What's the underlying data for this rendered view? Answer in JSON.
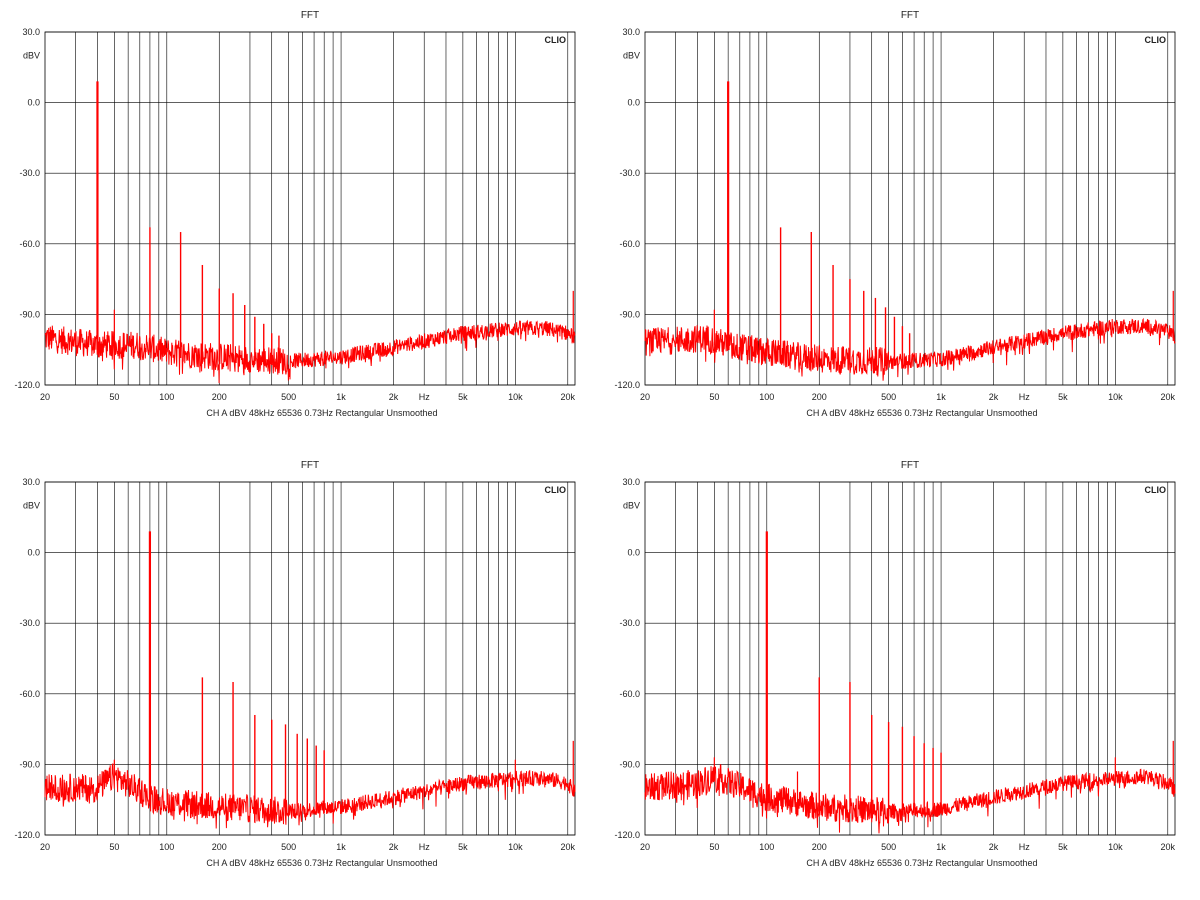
{
  "colors": {
    "trace": "#ff0000",
    "grid": "#000000",
    "text": "#222222",
    "background": "#ffffff"
  },
  "chart_data": [
    {
      "type": "line",
      "title": "FFT",
      "brand": "CLIO",
      "ylabel": "dBV",
      "xlabel": "Hz",
      "footer": "CH A   dBV   48kHz   65536   0.73Hz   Rectangular   Unsmoothed",
      "x_scale": "log",
      "xlim": [
        20,
        22000
      ],
      "ylim": [
        -120,
        30
      ],
      "y_ticks": [
        "30.0",
        "0.0",
        "-30.0",
        "-60.0",
        "-90.0",
        "-120.0"
      ],
      "x_ticks": [
        "20",
        "50",
        "100",
        "200",
        "500",
        "1k",
        "2k",
        "5k",
        "10k",
        "20k"
      ],
      "grid": true,
      "series": [
        {
          "fundamental_hz": 40,
          "fundamental_db": 9,
          "peaks": [
            [
              80,
              -53
            ],
            [
              120,
              -55
            ],
            [
              160,
              -69
            ],
            [
              200,
              -79
            ],
            [
              240,
              -81
            ],
            [
              280,
              -86
            ],
            [
              320,
              -91
            ],
            [
              360,
              -94
            ],
            [
              400,
              -98
            ],
            [
              440,
              -99
            ]
          ],
          "floor": [
            [
              20,
              -100
            ],
            [
              40,
              -103
            ],
            [
              70,
              -103
            ],
            [
              100,
              -106
            ],
            [
              200,
              -108
            ],
            [
              500,
              -110
            ],
            [
              1000,
              -108
            ],
            [
              2000,
              -104
            ],
            [
              5000,
              -98
            ],
            [
              10000,
              -96
            ],
            [
              15000,
              -96
            ],
            [
              20000,
              -98
            ],
            [
              22000,
              -100
            ]
          ],
          "extra_spurs": [
            [
              50,
              -88
            ],
            [
              21500,
              -80
            ]
          ]
        }
      ]
    },
    {
      "type": "line",
      "title": "FFT",
      "brand": "CLIO",
      "ylabel": "dBV",
      "xlabel": "Hz",
      "footer": "CH A   dBV   48kHz   65536   0.73Hz   Rectangular   Unsmoothed",
      "x_scale": "log",
      "xlim": [
        20,
        22000
      ],
      "ylim": [
        -120,
        30
      ],
      "y_ticks": [
        "30.0",
        "0.0",
        "-30.0",
        "-60.0",
        "-90.0",
        "-120.0"
      ],
      "x_ticks": [
        "20",
        "50",
        "100",
        "200",
        "500",
        "1k",
        "2k",
        "5k",
        "10k",
        "20k"
      ],
      "grid": true,
      "series": [
        {
          "fundamental_hz": 60,
          "fundamental_db": 9,
          "peaks": [
            [
              120,
              -53
            ],
            [
              180,
              -55
            ],
            [
              240,
              -69
            ],
            [
              300,
              -75
            ],
            [
              360,
              -80
            ],
            [
              420,
              -83
            ],
            [
              480,
              -87
            ],
            [
              540,
              -91
            ],
            [
              600,
              -95
            ],
            [
              660,
              -98
            ]
          ],
          "floor": [
            [
              20,
              -102
            ],
            [
              45,
              -100
            ],
            [
              60,
              -103
            ],
            [
              100,
              -106
            ],
            [
              200,
              -109
            ],
            [
              500,
              -110
            ],
            [
              1000,
              -109
            ],
            [
              2000,
              -104
            ],
            [
              5000,
              -98
            ],
            [
              10000,
              -95
            ],
            [
              15000,
              -95
            ],
            [
              20000,
              -97
            ],
            [
              22000,
              -100
            ]
          ],
          "extra_spurs": [
            [
              50,
              -88
            ],
            [
              21500,
              -80
            ]
          ]
        }
      ]
    },
    {
      "type": "line",
      "title": "FFT",
      "brand": "CLIO",
      "ylabel": "dBV",
      "xlabel": "Hz",
      "footer": "CH A   dBV   48kHz   65536   0.73Hz   Rectangular   Unsmoothed",
      "x_scale": "log",
      "xlim": [
        20,
        22000
      ],
      "ylim": [
        -120,
        30
      ],
      "y_ticks": [
        "30.0",
        "0.0",
        "-30.0",
        "-60.0",
        "-90.0",
        "-120.0"
      ],
      "x_ticks": [
        "20",
        "50",
        "100",
        "200",
        "500",
        "1k",
        "2k",
        "5k",
        "10k",
        "20k"
      ],
      "grid": true,
      "series": [
        {
          "fundamental_hz": 80,
          "fundamental_db": 9,
          "peaks": [
            [
              160,
              -53
            ],
            [
              240,
              -55
            ],
            [
              320,
              -69
            ],
            [
              400,
              -71
            ],
            [
              480,
              -73
            ],
            [
              560,
              -77
            ],
            [
              640,
              -79
            ],
            [
              720,
              -82
            ],
            [
              800,
              -84
            ]
          ],
          "floor": [
            [
              20,
              -100
            ],
            [
              40,
              -100
            ],
            [
              50,
              -95
            ],
            [
              80,
              -104
            ],
            [
              100,
              -106
            ],
            [
              200,
              -108
            ],
            [
              500,
              -110
            ],
            [
              1000,
              -108
            ],
            [
              2000,
              -104
            ],
            [
              5000,
              -98
            ],
            [
              10000,
              -96
            ],
            [
              15000,
              -96
            ],
            [
              20000,
              -98
            ],
            [
              22000,
              -102
            ]
          ],
          "extra_spurs": [
            [
              50,
              -88
            ],
            [
              10000,
              -88
            ],
            [
              21500,
              -80
            ]
          ]
        }
      ]
    },
    {
      "type": "line",
      "title": "FFT",
      "brand": "CLIO",
      "ylabel": "dBV",
      "xlabel": "Hz",
      "footer": "CH A   dBV   48kHz   65536   0.73Hz   Rectangular   Unsmoothed",
      "x_scale": "log",
      "xlim": [
        20,
        22000
      ],
      "ylim": [
        -120,
        30
      ],
      "y_ticks": [
        "30.0",
        "0.0",
        "-30.0",
        "-60.0",
        "-90.0",
        "-120.0"
      ],
      "x_ticks": [
        "20",
        "50",
        "100",
        "200",
        "500",
        "1k",
        "2k",
        "5k",
        "10k",
        "20k"
      ],
      "grid": true,
      "series": [
        {
          "fundamental_hz": 100,
          "fundamental_db": 9,
          "peaks": [
            [
              200,
              -53
            ],
            [
              300,
              -55
            ],
            [
              400,
              -69
            ],
            [
              500,
              -72
            ],
            [
              600,
              -74
            ],
            [
              700,
              -78
            ],
            [
              800,
              -81
            ],
            [
              900,
              -83
            ],
            [
              1000,
              -85
            ]
          ],
          "floor": [
            [
              20,
              -100
            ],
            [
              40,
              -98
            ],
            [
              50,
              -95
            ],
            [
              100,
              -104
            ],
            [
              200,
              -108
            ],
            [
              500,
              -110
            ],
            [
              1000,
              -109
            ],
            [
              2000,
              -104
            ],
            [
              5000,
              -98
            ],
            [
              10000,
              -96
            ],
            [
              15000,
              -95
            ],
            [
              20000,
              -98
            ],
            [
              22000,
              -101
            ]
          ],
          "extra_spurs": [
            [
              50,
              -87
            ],
            [
              150,
              -93
            ],
            [
              10000,
              -87
            ],
            [
              21500,
              -80
            ]
          ]
        }
      ]
    }
  ]
}
